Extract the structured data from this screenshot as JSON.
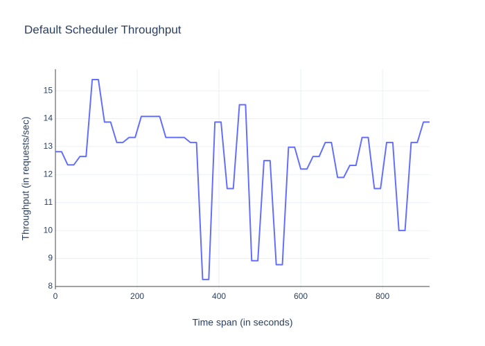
{
  "chart_data": {
    "type": "line",
    "title": "Default Scheduler Throughput",
    "x_label": "Time span (in seconds)",
    "y_label": "Throughput (in requests/sec)",
    "x": [
      0,
      15,
      30,
      45,
      60,
      75,
      90,
      105,
      120,
      135,
      150,
      165,
      180,
      195,
      210,
      225,
      240,
      255,
      270,
      285,
      300,
      315,
      330,
      345,
      360,
      375,
      390,
      405,
      420,
      435,
      450,
      465,
      480,
      495,
      510,
      525,
      540,
      555,
      570,
      585,
      600,
      615,
      630,
      645,
      660,
      675,
      690,
      705,
      720,
      735,
      750,
      765,
      780,
      795,
      810,
      825,
      840,
      855,
      870,
      885,
      900,
      915
    ],
    "series": [
      {
        "name": "Throughput",
        "color": "#636efa",
        "values": [
          12.82,
          12.82,
          12.35,
          12.35,
          12.65,
          12.65,
          15.4,
          15.4,
          13.88,
          13.88,
          13.15,
          13.15,
          13.33,
          13.33,
          14.08,
          14.08,
          14.08,
          14.08,
          13.33,
          13.33,
          13.33,
          13.33,
          13.15,
          13.15,
          8.25,
          8.25,
          13.88,
          13.88,
          11.5,
          11.5,
          14.5,
          14.5,
          8.92,
          8.92,
          12.5,
          12.5,
          8.78,
          8.78,
          12.98,
          12.98,
          12.2,
          12.2,
          12.65,
          12.65,
          13.15,
          13.15,
          11.9,
          11.9,
          12.33,
          12.33,
          13.33,
          13.33,
          11.5,
          11.5,
          13.15,
          13.15,
          10.0,
          10.0,
          13.15,
          13.15,
          13.88,
          13.88
        ]
      }
    ],
    "xlim": [
      0,
      915
    ],
    "xticks": [
      0,
      200,
      400,
      600,
      800
    ],
    "ylim": [
      7.9,
      15.77
    ],
    "yticks": [
      8,
      9,
      10,
      11,
      12,
      13,
      14,
      15
    ],
    "grid": true
  }
}
